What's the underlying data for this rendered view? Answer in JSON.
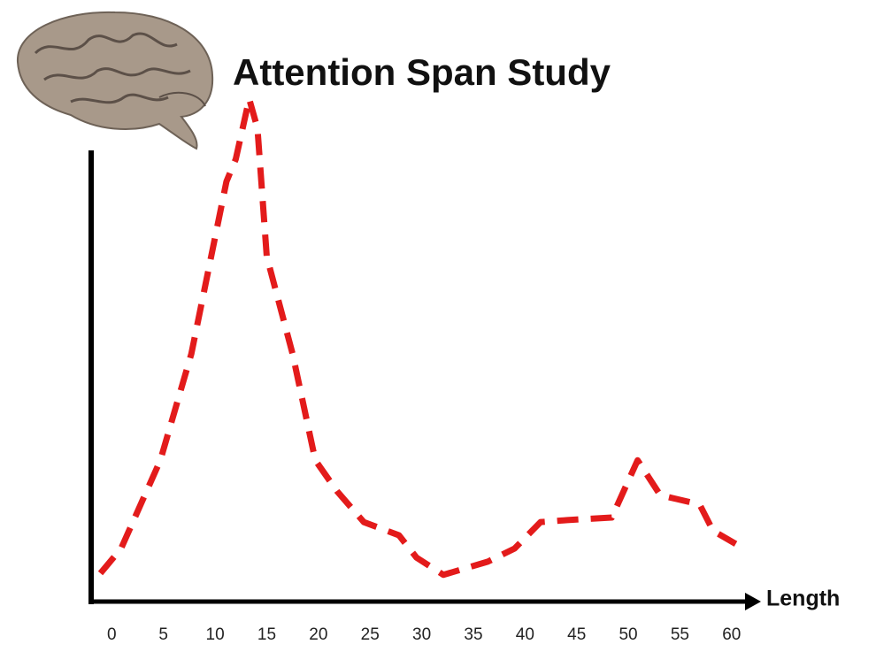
{
  "chart_data": {
    "type": "line",
    "title": "Attention Span Study",
    "x_label": "Length",
    "x": [
      -1.1,
      0.9,
      4.7,
      7.7,
      11.1,
      12,
      13.3,
      14.1,
      15,
      17.5,
      19.7,
      21.8,
      24.4,
      27.8,
      29.5,
      32.1,
      36.4,
      39,
      41.5,
      44.1,
      48.4,
      50.9,
      53.1,
      56.9,
      58.2,
      60.4
    ],
    "series": [
      {
        "color": "#e31b1b",
        "values": [
          6.1,
          11,
          28.4,
          49.4,
          83.4,
          87.8,
          99.7,
          93.9,
          68.6,
          49.4,
          28.4,
          22.3,
          16.2,
          13.6,
          9.2,
          5.8,
          8.4,
          11,
          16.2,
          16.6,
          17.1,
          28.4,
          21.5,
          19.7,
          14.5,
          11.9
        ]
      }
    ],
    "xlim": [
      -2,
      62.5
    ],
    "ylim": [
      0,
      100
    ],
    "xticks": [
      0,
      5,
      10,
      15,
      20,
      25,
      30,
      35,
      40,
      45,
      50,
      55,
      60
    ]
  }
}
